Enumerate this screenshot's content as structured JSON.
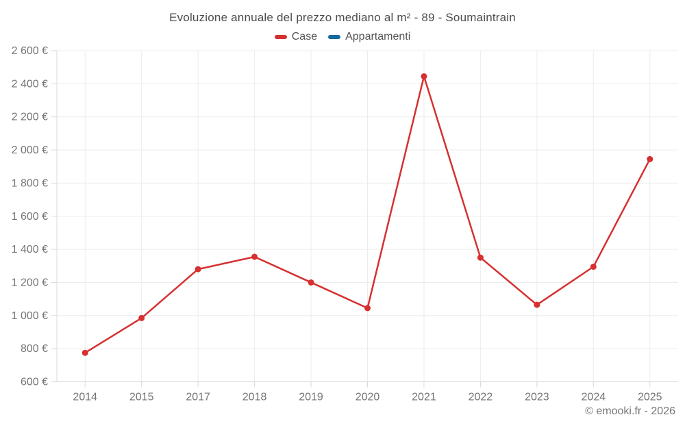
{
  "title": "Evoluzione annuale del prezzo mediano al m² - 89 - Soumaintrain",
  "copyright": "© emooki.fr - 2026",
  "colors": {
    "case_series": "#d63031",
    "appartamenti_series": "#16699d",
    "gridline": "#ececec",
    "axis_line": "#d9d9d9",
    "axis_text": "#757575",
    "title_text": "#4c4c4c",
    "legend_text": "#555555"
  },
  "chart_data": {
    "type": "line",
    "title": "Evoluzione annuale del prezzo mediano al m² - 89 - Soumaintrain",
    "categories": [
      "2014",
      "2015",
      "2017",
      "2018",
      "2019",
      "2020",
      "2021",
      "2022",
      "2023",
      "2024",
      "2025"
    ],
    "series": [
      {
        "name": "Case",
        "color": "#d63031",
        "values": [
          775,
          985,
          1280,
          1355,
          1200,
          1045,
          2445,
          1350,
          1065,
          1295,
          1945
        ]
      },
      {
        "name": "Appartamenti",
        "color": "#16699d",
        "values": []
      }
    ],
    "xlabel": "",
    "ylabel": "",
    "ylim": [
      600,
      2600
    ],
    "ytick_step": 200,
    "ytick_format": "thousands space + € suffix",
    "grid": true,
    "legend_position": "top",
    "marker": "circle"
  }
}
